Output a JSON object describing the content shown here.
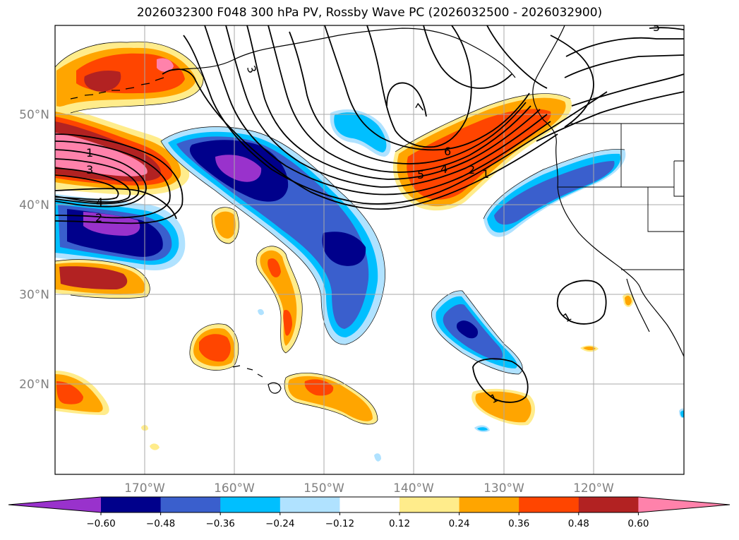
{
  "title": "2026032300 F048 300 hPa PV, Rossby Wave PC (2026032500 - 2026032900)",
  "axes": {
    "lat_labels": [
      "50°N",
      "40°N",
      "30°N",
      "20°N"
    ],
    "lon_labels": [
      "170°W",
      "160°W",
      "150°W",
      "140°W",
      "130°W",
      "120°W"
    ]
  },
  "colorbar": {
    "ticks": [
      "−0.60",
      "−0.48",
      "−0.36",
      "−0.24",
      "−0.12",
      "0.12",
      "0.24",
      "0.36",
      "0.48",
      "0.60"
    ],
    "colors": [
      "#9932cc",
      "#00008b",
      "#3a5fcd",
      "#00bfff",
      "#b0e2ff",
      "#ffffff",
      "#ffec8b",
      "#ffa500",
      "#ff4500",
      "#b22222",
      "#ff82ab"
    ]
  },
  "contour_labels": {
    "a": "1",
    "b": "3",
    "c": "4",
    "d": "2",
    "e": "3",
    "f": "7",
    "g": "6",
    "h": "5",
    "i": "4",
    "j": "2",
    "k": "1",
    "l": "1",
    "m": "1",
    "n": "5"
  }
}
